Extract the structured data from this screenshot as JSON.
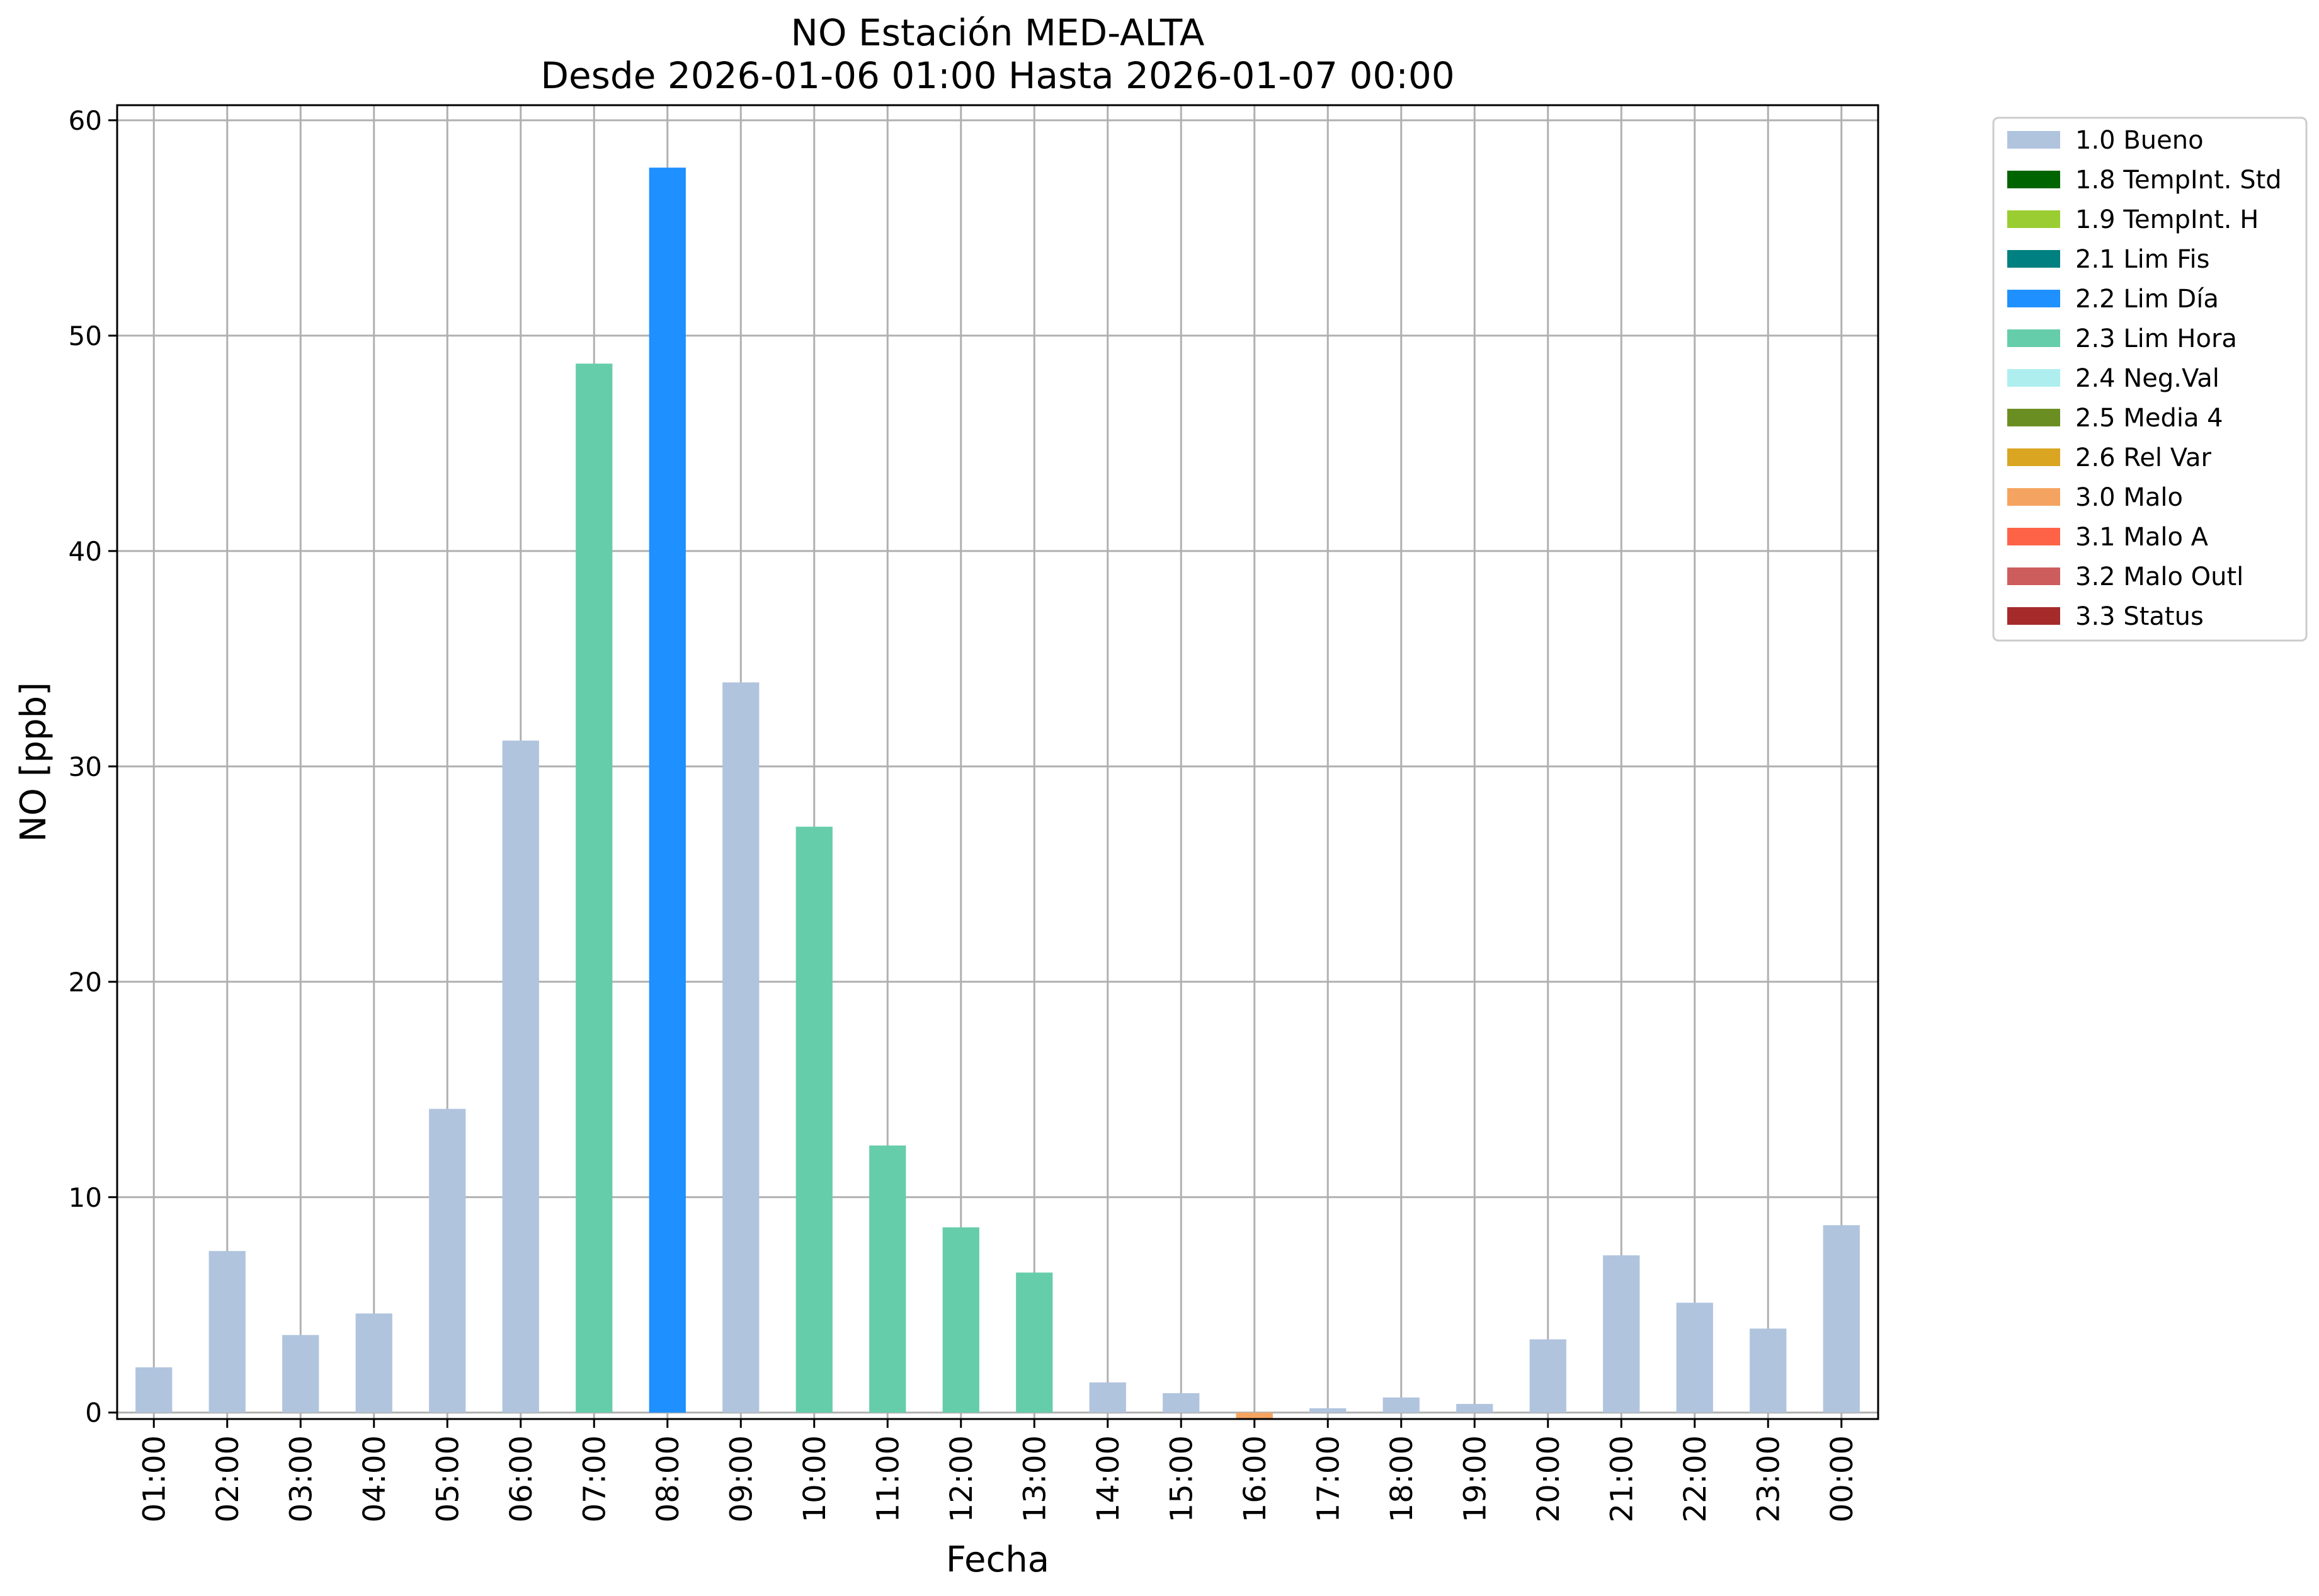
{
  "chart_data": {
    "type": "bar",
    "title": [
      "NO Estación MED-ALTA",
      "Desde 2026-01-06 01:00 Hasta 2026-01-07 00:00"
    ],
    "xlabel": "Fecha",
    "ylabel": "NO [ppb]",
    "ylim": [
      -0.3,
      60.7
    ],
    "yticks": [
      0,
      10,
      20,
      30,
      40,
      50,
      60
    ],
    "grid": true,
    "legend_position": "outside-top-right",
    "categories": [
      "01:00",
      "02:00",
      "03:00",
      "04:00",
      "05:00",
      "06:00",
      "07:00",
      "08:00",
      "09:00",
      "10:00",
      "11:00",
      "12:00",
      "13:00",
      "14:00",
      "15:00",
      "16:00",
      "17:00",
      "18:00",
      "19:00",
      "20:00",
      "21:00",
      "22:00",
      "23:00",
      "00:00"
    ],
    "values": [
      2.1,
      7.5,
      3.6,
      4.6,
      14.1,
      31.2,
      48.7,
      57.8,
      33.9,
      27.2,
      12.4,
      8.6,
      6.5,
      1.4,
      0.9,
      -0.3,
      0.2,
      0.7,
      0.4,
      3.4,
      7.3,
      5.1,
      3.9,
      8.7
    ],
    "flags": [
      "1.0 Bueno",
      "1.0 Bueno",
      "1.0 Bueno",
      "1.0 Bueno",
      "1.0 Bueno",
      "1.0 Bueno",
      "2.3 Lim Hora",
      "2.2 Lim Día",
      "1.0 Bueno",
      "2.3 Lim Hora",
      "2.3 Lim Hora",
      "2.3 Lim Hora",
      "2.3 Lim Hora",
      "1.0 Bueno",
      "1.0 Bueno",
      "3.0 Malo",
      "1.0 Bueno",
      "1.0 Bueno",
      "1.0 Bueno",
      "1.0 Bueno",
      "1.0 Bueno",
      "1.0 Bueno",
      "1.0 Bueno",
      "1.0 Bueno"
    ],
    "legend": [
      {
        "name": "1.0 Bueno",
        "color": "#b0c4de"
      },
      {
        "name": "1.8 TempInt. Std",
        "color": "#006400"
      },
      {
        "name": "1.9 TempInt. H",
        "color": "#9acd32"
      },
      {
        "name": "2.1 Lim Fis",
        "color": "#008080"
      },
      {
        "name": "2.2 Lim Día",
        "color": "#1e90ff"
      },
      {
        "name": "2.3 Lim Hora",
        "color": "#66cdaa"
      },
      {
        "name": "2.4 Neg.Val",
        "color": "#afeeee"
      },
      {
        "name": "2.5 Media 4",
        "color": "#6b8e23"
      },
      {
        "name": "2.6 Rel Var",
        "color": "#daa520"
      },
      {
        "name": "3.0 Malo",
        "color": "#f4a460"
      },
      {
        "name": "3.1 Malo A",
        "color": "#ff6347"
      },
      {
        "name": "3.2 Malo Outl",
        "color": "#cd5c5c"
      },
      {
        "name": "3.3 Status",
        "color": "#a52a2a"
      }
    ]
  }
}
